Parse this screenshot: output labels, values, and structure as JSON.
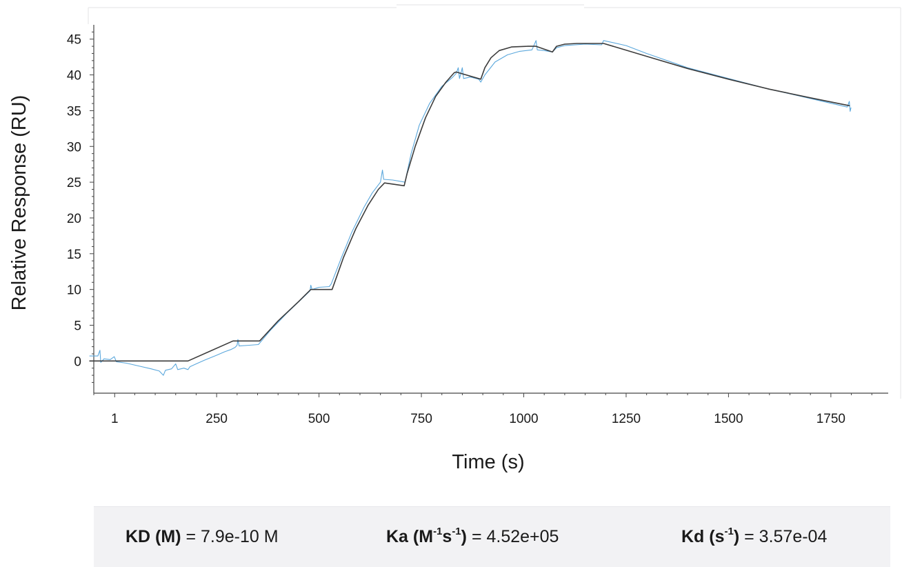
{
  "chart_data": {
    "type": "line",
    "title": "",
    "xlabel": "Time (s)",
    "ylabel": "Relative Response (RU)",
    "xlim": [
      -50,
      1890
    ],
    "ylim": [
      -4.5,
      47
    ],
    "x_ticks": [
      1,
      250,
      500,
      750,
      1000,
      1250,
      1500,
      1750
    ],
    "y_ticks": [
      0,
      5,
      10,
      15,
      20,
      25,
      30,
      35,
      40,
      45
    ],
    "grid": false,
    "legend": "none",
    "series": [
      {
        "role": "measured",
        "color": "#5aa7dc",
        "points": [
          [
            -60,
            0.7
          ],
          [
            -40,
            0.7
          ],
          [
            -35,
            1.5
          ],
          [
            -33,
            -0.2
          ],
          [
            -25,
            0.3
          ],
          [
            -10,
            0.2
          ],
          [
            0,
            0.6
          ],
          [
            5,
            -0.1
          ],
          [
            30,
            -0.3
          ],
          [
            60,
            -0.7
          ],
          [
            90,
            -1.1
          ],
          [
            110,
            -1.4
          ],
          [
            120,
            -2.0
          ],
          [
            125,
            -1.3
          ],
          [
            140,
            -1.1
          ],
          [
            150,
            -0.4
          ],
          [
            155,
            -1.2
          ],
          [
            170,
            -1.0
          ],
          [
            180,
            -1.2
          ],
          [
            185,
            -0.8
          ],
          [
            200,
            -0.4
          ],
          [
            220,
            0.1
          ],
          [
            250,
            0.8
          ],
          [
            270,
            1.3
          ],
          [
            285,
            1.6
          ],
          [
            295,
            1.9
          ],
          [
            300,
            2.2
          ],
          [
            302,
            3.0
          ],
          [
            305,
            2.1
          ],
          [
            330,
            2.2
          ],
          [
            352,
            2.3
          ],
          [
            355,
            2.5
          ],
          [
            380,
            4.2
          ],
          [
            420,
            6.6
          ],
          [
            460,
            8.8
          ],
          [
            478,
            9.8
          ],
          [
            480,
            10.6
          ],
          [
            483,
            10.0
          ],
          [
            500,
            10.3
          ],
          [
            525,
            10.4
          ],
          [
            530,
            10.8
          ],
          [
            555,
            14.5
          ],
          [
            580,
            18.0
          ],
          [
            610,
            21.5
          ],
          [
            630,
            23.5
          ],
          [
            650,
            25.0
          ],
          [
            655,
            26.7
          ],
          [
            658,
            25.4
          ],
          [
            680,
            25.3
          ],
          [
            710,
            25.0
          ],
          [
            725,
            29.0
          ],
          [
            745,
            33.0
          ],
          [
            770,
            36.0
          ],
          [
            800,
            38.4
          ],
          [
            825,
            39.6
          ],
          [
            835,
            40.2
          ],
          [
            840,
            41.0
          ],
          [
            843,
            39.5
          ],
          [
            850,
            41.0
          ],
          [
            853,
            39.5
          ],
          [
            870,
            39.7
          ],
          [
            890,
            39.4
          ],
          [
            895,
            39.0
          ],
          [
            905,
            40.0
          ],
          [
            930,
            41.8
          ],
          [
            960,
            42.8
          ],
          [
            990,
            43.3
          ],
          [
            1020,
            43.5
          ],
          [
            1030,
            44.8
          ],
          [
            1033,
            43.5
          ],
          [
            1050,
            43.4
          ],
          [
            1070,
            43.2
          ],
          [
            1080,
            43.8
          ],
          [
            1100,
            44.1
          ],
          [
            1150,
            44.3
          ],
          [
            1190,
            44.2
          ],
          [
            1195,
            44.8
          ],
          [
            1250,
            44.1
          ],
          [
            1300,
            43.0
          ],
          [
            1400,
            41.0
          ],
          [
            1500,
            39.5
          ],
          [
            1600,
            38.0
          ],
          [
            1700,
            36.7
          ],
          [
            1790,
            35.5
          ],
          [
            1795,
            36.3
          ],
          [
            1797,
            34.9
          ],
          [
            1799,
            35.4
          ]
        ]
      },
      {
        "role": "fit",
        "color": "#3b3b3b",
        "points": [
          [
            -60,
            0
          ],
          [
            180,
            0
          ],
          [
            290,
            2.8
          ],
          [
            345,
            2.8
          ],
          [
            355,
            2.8
          ],
          [
            400,
            5.6
          ],
          [
            450,
            8.3
          ],
          [
            480,
            10.0
          ],
          [
            532,
            10.0
          ],
          [
            560,
            14.5
          ],
          [
            590,
            18.5
          ],
          [
            620,
            21.8
          ],
          [
            645,
            24.0
          ],
          [
            660,
            24.9
          ],
          [
            708,
            24.5
          ],
          [
            715,
            26.2
          ],
          [
            735,
            30.0
          ],
          [
            760,
            34.0
          ],
          [
            785,
            37.0
          ],
          [
            810,
            39.0
          ],
          [
            830,
            40.3
          ],
          [
            835,
            40.4
          ],
          [
            895,
            39.4
          ],
          [
            905,
            41.0
          ],
          [
            920,
            42.4
          ],
          [
            940,
            43.4
          ],
          [
            970,
            43.9
          ],
          [
            1010,
            44.0
          ],
          [
            1030,
            44.0
          ],
          [
            1070,
            43.2
          ],
          [
            1080,
            44.0
          ],
          [
            1100,
            44.3
          ],
          [
            1130,
            44.4
          ],
          [
            1195,
            44.4
          ],
          [
            1300,
            42.6
          ],
          [
            1400,
            40.9
          ],
          [
            1500,
            39.4
          ],
          [
            1600,
            38.0
          ],
          [
            1700,
            36.8
          ],
          [
            1795,
            35.7
          ]
        ]
      }
    ]
  },
  "results": {
    "kd_m_label": "KD (M)",
    "kd_m_value": "= 7.9e-10 M",
    "ka_label_main": "Ka (M",
    "ka_sup1": "-1",
    "ka_label_mid": "s",
    "ka_sup2": "-1",
    "ka_label_end": ")",
    "ka_value": "= 4.52e+05",
    "kd_s_label_main": "Kd (s",
    "kd_s_sup": "-1",
    "kd_s_label_end": ")",
    "kd_s_value": "= 3.57e-04"
  }
}
